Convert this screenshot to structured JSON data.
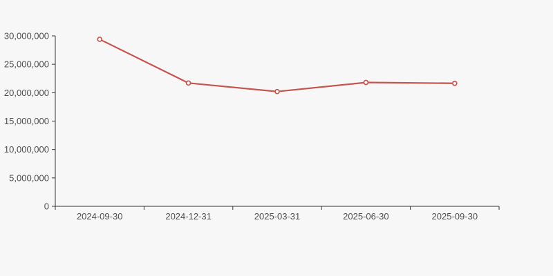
{
  "page": {
    "background": "#f7f7f7"
  },
  "chart_data": {
    "type": "line",
    "title": "",
    "xlabel": "",
    "ylabel": "",
    "categories": [
      "2024-09-30",
      "2024-12-31",
      "2025-03-31",
      "2025-06-30",
      "2025-09-30"
    ],
    "series": [
      {
        "name": "series-1",
        "values": [
          29400000,
          21700000,
          20200000,
          21800000,
          21650000
        ]
      }
    ],
    "ylim": [
      0,
      30000000
    ],
    "y_tick_step": 5000000,
    "y_tick_labels": [
      "0",
      "5,000,000",
      "10,000,000",
      "15,000,000",
      "20,000,000",
      "25,000,000",
      "30,000,000"
    ],
    "grid": false,
    "legend_position": "none",
    "colors": {
      "line": "#c5544e",
      "marker_fill": "#ffffff",
      "axis": "#333333",
      "tick_label": "#4d4d4d",
      "background": "#f7f7f7"
    },
    "marker": "hollow-circle"
  }
}
